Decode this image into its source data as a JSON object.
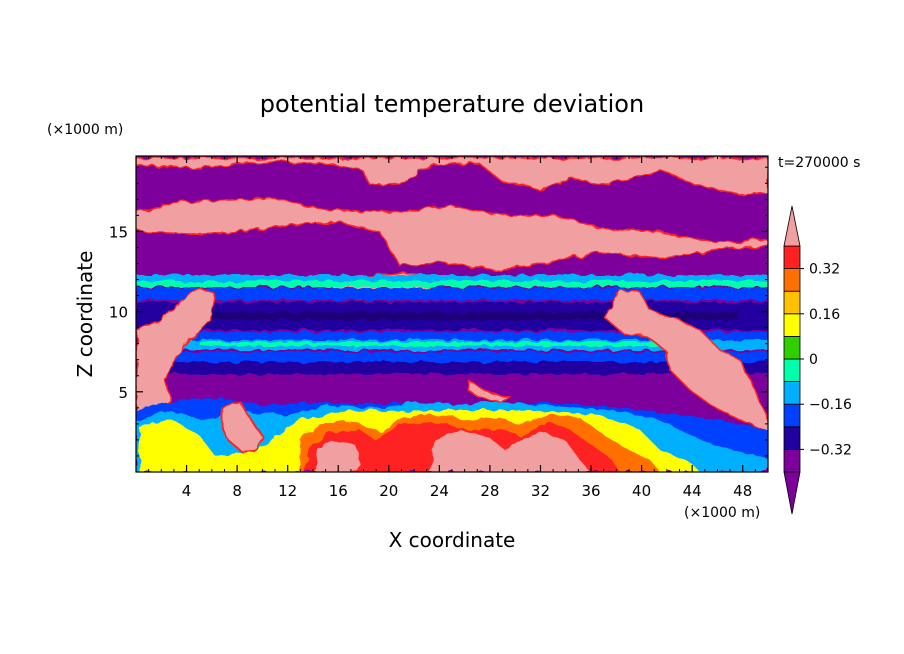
{
  "chart_data": {
    "type": "heatmap",
    "title": "potential temperature deviation",
    "time_label": "t=270000 s",
    "xlabel": "X coordinate",
    "ylabel": "Z coordinate",
    "x_unit": "(×1000 m)",
    "y_unit": "(×1000 m)",
    "xlim": [
      0,
      50
    ],
    "ylim": [
      0,
      19.7
    ],
    "x_ticks": [
      4,
      8,
      12,
      16,
      20,
      24,
      28,
      32,
      36,
      40,
      44,
      48
    ],
    "y_ticks": [
      5,
      10,
      15
    ],
    "colorbar": {
      "levels": [
        -0.4,
        -0.32,
        -0.24,
        -0.16,
        -0.08,
        0,
        0.08,
        0.16,
        0.24,
        0.32,
        0.4
      ],
      "labels": [
        "0.32",
        "0.16",
        "0",
        "−0.16",
        "−0.32"
      ],
      "label_values": [
        0.32,
        0.16,
        0,
        -0.16,
        -0.32
      ],
      "colors": [
        "#7d009c",
        "#2300a0",
        "#0040ff",
        "#00b0ff",
        "#00ffaa",
        "#30d000",
        "#ffff00",
        "#ffc000",
        "#ff7000",
        "#ff2020",
        "#f0a0a0"
      ],
      "extend": "both"
    },
    "background_color": "#7d009c"
  }
}
